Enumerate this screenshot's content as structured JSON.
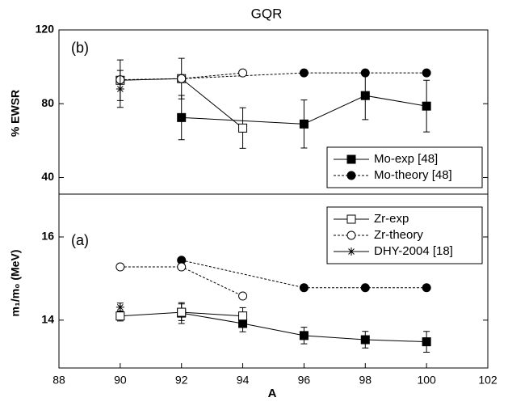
{
  "chart_data": [
    {
      "type": "line",
      "title": "GQR",
      "annotation": "(b)",
      "ylabel": "% EWSR",
      "ylim": [
        31,
        120
      ],
      "yticks": [
        40,
        80,
        120
      ],
      "xlim": [
        88,
        102
      ],
      "legend": "lower right",
      "series": [
        {
          "name": "Mo-exp [48]",
          "color": "#000000",
          "marker": "square",
          "filled": true,
          "dashed": false,
          "x": [
            92,
            96,
            98,
            100
          ],
          "values": [
            72.5,
            69,
            84.4,
            78.7
          ],
          "errors": [
            12,
            13,
            13,
            14
          ]
        },
        {
          "name": "Mo-theory [48]",
          "color": "#000000",
          "marker": "circle",
          "filled": true,
          "dashed": true,
          "x": [
            92,
            96,
            98,
            100
          ],
          "values": [
            93.6,
            96.7,
            96.7,
            96.7
          ]
        },
        {
          "color": "#000000",
          "marker": "square",
          "filled": false,
          "dashed": false,
          "x": [
            90,
            92,
            94
          ],
          "values": [
            92.7,
            93.6,
            66.8
          ],
          "errors": [
            11,
            11,
            11
          ]
        },
        {
          "color": "#000000",
          "marker": "circle",
          "filled": false,
          "dashed": true,
          "x": [
            90,
            92,
            94
          ],
          "values": [
            93,
            93.6,
            96.7
          ]
        },
        {
          "color": "#000000",
          "marker": "star",
          "filled": false,
          "dashed": false,
          "x": [
            90
          ],
          "values": [
            88
          ],
          "errors": [
            10
          ]
        }
      ]
    },
    {
      "type": "line",
      "annotation": "(a)",
      "ylabel": "m₁/m₀ (MeV)",
      "xlabel": "A",
      "ylim": [
        12.85,
        17.03
      ],
      "yticks": [
        14,
        16
      ],
      "xlim": [
        88,
        102
      ],
      "xticks": [
        88,
        90,
        92,
        94,
        96,
        98,
        100,
        102
      ],
      "legend": "upper right",
      "series": [
        {
          "color": "#000000",
          "marker": "square",
          "filled": true,
          "dashed": false,
          "x": [
            92,
            94,
            96,
            98,
            100
          ],
          "values": [
            14.17,
            13.92,
            13.63,
            13.53,
            13.48
          ],
          "errors": [
            0.25,
            0.2,
            0.2,
            0.2,
            0.25
          ]
        },
        {
          "color": "#000000",
          "marker": "circle",
          "filled": true,
          "dashed": true,
          "x": [
            92,
            96,
            98,
            100
          ],
          "values": [
            15.44,
            14.78,
            14.78,
            14.78
          ]
        },
        {
          "name": "Zr-exp",
          "color": "#000000",
          "marker": "square",
          "filled": false,
          "dashed": false,
          "x": [
            90,
            92,
            94
          ],
          "values": [
            14.1,
            14.19,
            14.1
          ],
          "errors": [
            0.12,
            0.2,
            0.2
          ]
        },
        {
          "name": "Zr-theory",
          "color": "#000000",
          "marker": "circle",
          "filled": false,
          "dashed": true,
          "x": [
            90,
            92,
            94
          ],
          "values": [
            15.28,
            15.28,
            14.58
          ]
        },
        {
          "name": "DHY-2004 [18]",
          "color": "#000000",
          "marker": "star",
          "filled": false,
          "dashed": false,
          "x": [
            90
          ],
          "values": [
            14.31
          ],
          "errors": [
            0.1
          ]
        }
      ]
    }
  ]
}
